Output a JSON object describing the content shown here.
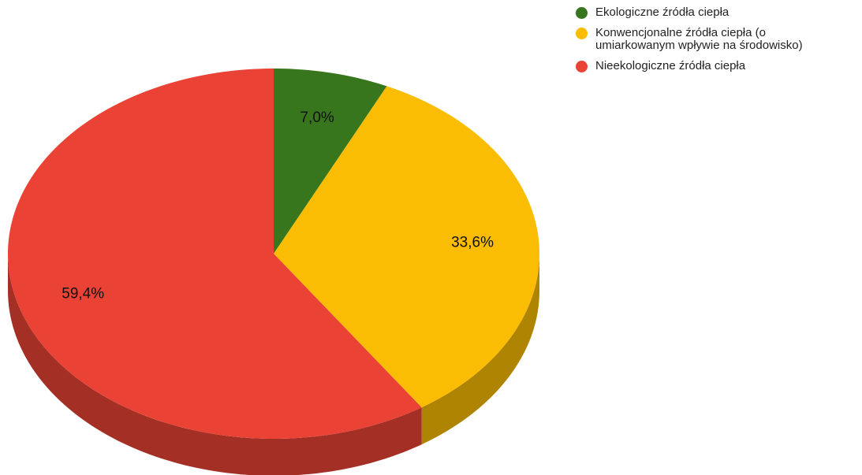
{
  "chart_data": {
    "type": "pie",
    "categories": [
      "Ekologiczne źródła ciepła",
      "Konwencjonalne źródła ciepła (o umiarkowanym wpływie na środowisko)",
      "Nieekologiczne źródła ciepła"
    ],
    "values": [
      7.0,
      33.6,
      59.4
    ],
    "value_labels": [
      "7,0%",
      "33,6%",
      "59,4%"
    ],
    "colors": [
      "#38761d",
      "#fbbc04",
      "#ea4335"
    ],
    "legend": "top-right"
  }
}
